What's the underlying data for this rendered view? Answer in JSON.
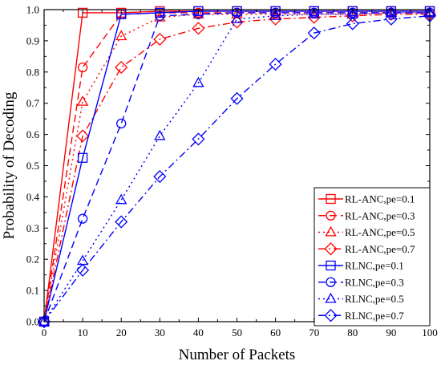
{
  "chart_data": {
    "type": "line",
    "title": "",
    "xlabel": "Number of Packets",
    "ylabel": "Probability of Decoding",
    "xlim": [
      0,
      100
    ],
    "ylim": [
      0,
      1.0
    ],
    "x_ticks": [
      "0",
      "10",
      "20",
      "30",
      "40",
      "50",
      "60",
      "70",
      "80",
      "90",
      "100"
    ],
    "y_ticks": [
      "0.0",
      "0.1",
      "0.2",
      "0.3",
      "0.4",
      "0.5",
      "0.6",
      "0.7",
      "0.8",
      "0.9",
      "1.0"
    ],
    "grid": false,
    "legend_position": "bottom-right",
    "x": [
      0,
      10,
      20,
      30,
      40,
      50,
      60,
      70,
      80,
      90,
      100
    ],
    "series": [
      {
        "name": "RL-ANC,pe=0.1",
        "color": "#ff0000",
        "marker": "square",
        "dash": "solid",
        "values": [
          0.0,
          0.99,
          0.99,
          0.995,
          0.995,
          0.995,
          0.995,
          0.995,
          0.995,
          0.995,
          0.995
        ]
      },
      {
        "name": "RL-ANC,pe=0.3",
        "color": "#ff0000",
        "marker": "circle",
        "dash": "dash",
        "values": [
          0.0,
          0.815,
          0.985,
          0.99,
          0.99,
          0.99,
          0.99,
          0.99,
          0.99,
          0.99,
          0.99
        ]
      },
      {
        "name": "RL-ANC,pe=0.5",
        "color": "#ff0000",
        "marker": "triangle",
        "dash": "dot",
        "values": [
          0.0,
          0.705,
          0.915,
          0.975,
          0.985,
          0.985,
          0.985,
          0.985,
          0.985,
          0.99,
          0.99
        ]
      },
      {
        "name": "RL-ANC,pe=0.7",
        "color": "#ff0000",
        "marker": "diamond",
        "dash": "dashdot",
        "values": [
          0.0,
          0.595,
          0.815,
          0.905,
          0.94,
          0.96,
          0.97,
          0.975,
          0.98,
          0.985,
          0.985
        ]
      },
      {
        "name": "RLNC,pe=0.1",
        "color": "#0000ff",
        "marker": "square",
        "dash": "solid",
        "values": [
          0.0,
          0.525,
          0.985,
          0.99,
          0.995,
          0.995,
          0.995,
          0.995,
          0.995,
          0.995,
          0.995
        ]
      },
      {
        "name": "RLNC,pe=0.3",
        "color": "#0000ff",
        "marker": "circle",
        "dash": "dash",
        "values": [
          0.0,
          0.33,
          0.635,
          0.98,
          0.985,
          0.99,
          0.99,
          0.99,
          0.99,
          0.99,
          0.99
        ]
      },
      {
        "name": "RLNC,pe=0.5",
        "color": "#0000ff",
        "marker": "triangle",
        "dash": "dot",
        "values": [
          0.0,
          0.195,
          0.39,
          0.595,
          0.765,
          0.97,
          0.98,
          0.985,
          0.985,
          0.99,
          0.99
        ]
      },
      {
        "name": "RLNC,pe=0.7",
        "color": "#0000ff",
        "marker": "diamond",
        "dash": "dashdot",
        "values": [
          0.0,
          0.165,
          0.32,
          0.465,
          0.585,
          0.715,
          0.825,
          0.925,
          0.955,
          0.97,
          0.98
        ]
      }
    ]
  }
}
